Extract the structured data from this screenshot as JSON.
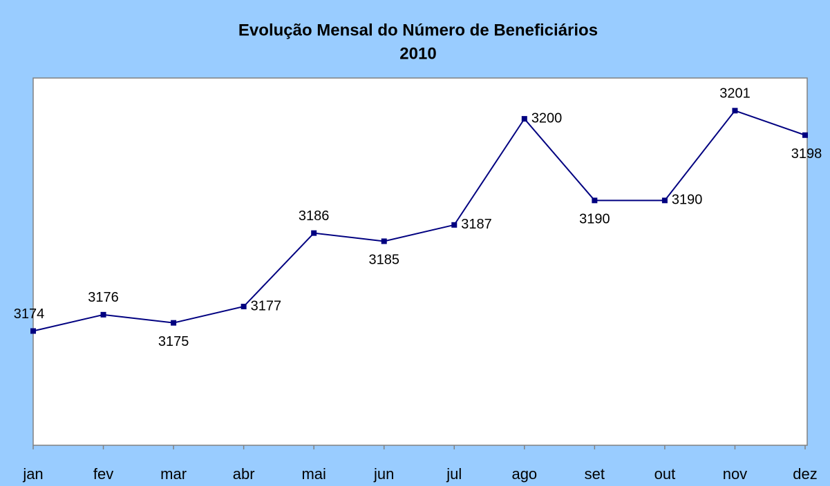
{
  "chart_data": {
    "type": "line",
    "title": [
      "Evolução Mensal do Número de Beneficiários",
      "2010"
    ],
    "categories": [
      "jan",
      "fev",
      "mar",
      "abr",
      "mai",
      "jun",
      "jul",
      "ago",
      "set",
      "out",
      "nov",
      "dez"
    ],
    "series": [
      {
        "color": "#000080",
        "values": [
          3174,
          3176,
          3175,
          3177,
          3186,
          3185,
          3187,
          3200,
          3190,
          3190,
          3201,
          3198
        ]
      }
    ],
    "ylim": [
      3160,
      3205
    ],
    "background": "#99ccff",
    "plot_background": "#ffffff"
  }
}
